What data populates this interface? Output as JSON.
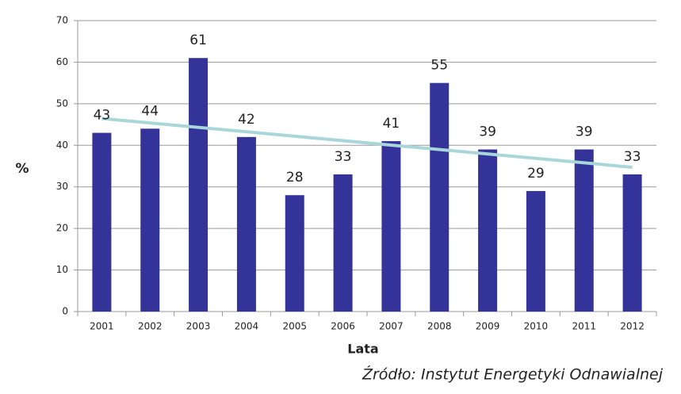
{
  "chart_data": {
    "type": "bar",
    "categories": [
      "2001",
      "2002",
      "2003",
      "2004",
      "2005",
      "2006",
      "2007",
      "2008",
      "2009",
      "2010",
      "2011",
      "2012"
    ],
    "values": [
      43,
      44,
      61,
      42,
      28,
      33,
      41,
      55,
      39,
      29,
      39,
      33
    ],
    "color": "#333399",
    "ylim": [
      0,
      70
    ],
    "yticks": [
      0,
      10,
      20,
      30,
      40,
      50,
      60,
      70
    ],
    "grid": true,
    "y_label": "%",
    "x_label": "Lata",
    "source": "Źródło: Instytut Energetyki Odnawialnej",
    "trendline": true,
    "trendline_color": "#a9d6d8"
  }
}
